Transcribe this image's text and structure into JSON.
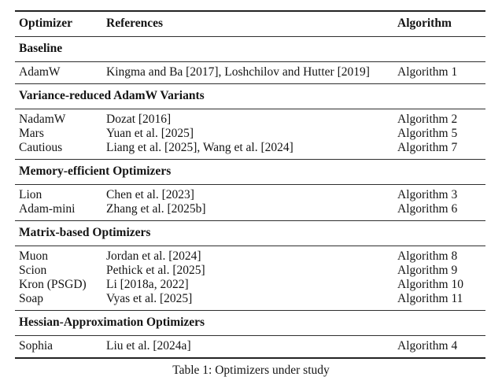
{
  "table": {
    "columns": [
      "Optimizer",
      "References",
      "Algorithm"
    ],
    "sections": [
      {
        "title": "Baseline",
        "rows": [
          {
            "optimizer": "AdamW",
            "references": "Kingma and Ba [2017], Loshchilov and Hutter [2019]",
            "algorithm": "Algorithm 1"
          }
        ]
      },
      {
        "title": "Variance-reduced AdamW Variants",
        "rows": [
          {
            "optimizer": "NadamW",
            "references": "Dozat [2016]",
            "algorithm": "Algorithm 2"
          },
          {
            "optimizer": "Mars",
            "references": "Yuan et al. [2025]",
            "algorithm": "Algorithm 5"
          },
          {
            "optimizer": "Cautious",
            "references": "Liang et al. [2025], Wang et al. [2024]",
            "algorithm": "Algorithm 7"
          }
        ]
      },
      {
        "title": "Memory-efficient Optimizers",
        "rows": [
          {
            "optimizer": "Lion",
            "references": "Chen et al. [2023]",
            "algorithm": "Algorithm 3"
          },
          {
            "optimizer": "Adam-mini",
            "references": "Zhang et al. [2025b]",
            "algorithm": "Algorithm 6"
          }
        ]
      },
      {
        "title": "Matrix-based Optimizers",
        "rows": [
          {
            "optimizer": "Muon",
            "references": "Jordan et al. [2024]",
            "algorithm": "Algorithm 8"
          },
          {
            "optimizer": "Scion",
            "references": "Pethick et al. [2025]",
            "algorithm": "Algorithm 9"
          },
          {
            "optimizer": "Kron (PSGD)",
            "references": "Li [2018a, 2022]",
            "algorithm": "Algorithm 10"
          },
          {
            "optimizer": "Soap",
            "references": "Vyas et al. [2025]",
            "algorithm": "Algorithm 11"
          }
        ]
      },
      {
        "title": "Hessian-Approximation Optimizers",
        "rows": [
          {
            "optimizer": "Sophia",
            "references": "Liu et al. [2024a]",
            "algorithm": "Algorithm 4"
          }
        ]
      }
    ],
    "caption": "Table 1: Optimizers under study"
  },
  "colors": {
    "background": "#ffffff",
    "text": "#141414",
    "rule": "#2e2e2e"
  }
}
